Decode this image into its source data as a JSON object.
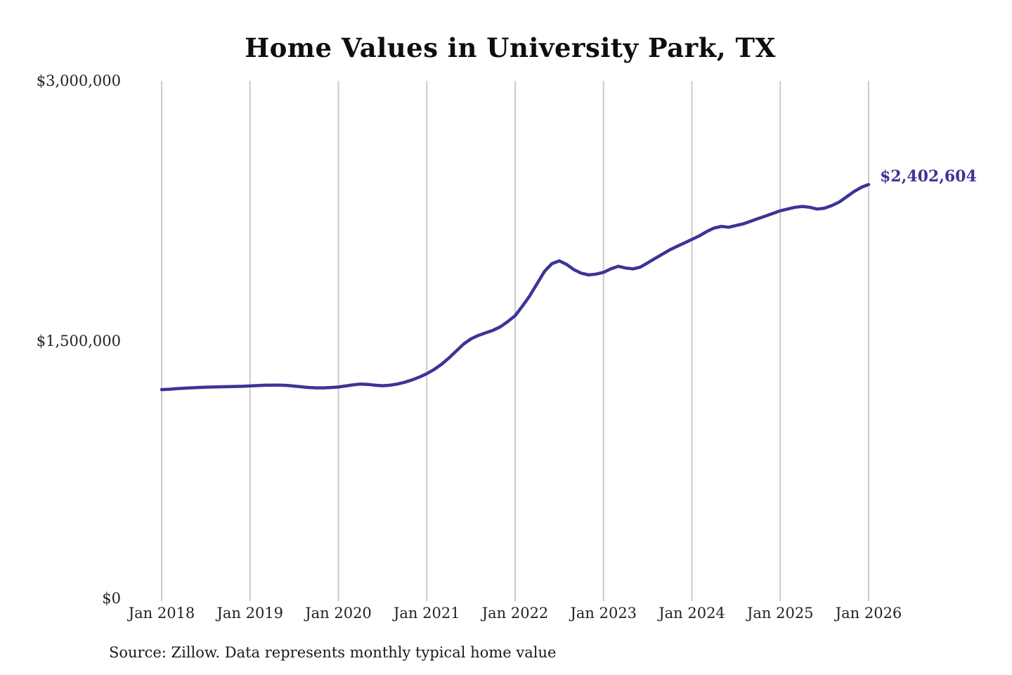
{
  "colors": {
    "accent": "#3b3596",
    "grid": "#cbcbcb",
    "text": "#222222"
  },
  "chart_data": {
    "type": "line",
    "title": "Home Values in University Park, TX",
    "source": "Source: Zillow. Data represents monthly typical home value",
    "final_value": 2402604,
    "final_value_label": "$2,402,604",
    "ylim": [
      0,
      3000000
    ],
    "y_ticks": [
      0,
      1500000,
      3000000
    ],
    "y_tick_labels": [
      "$0",
      "$1,500,000",
      "$3,000,000"
    ],
    "x_tick_labels": [
      "Jan 2018",
      "Jan 2019",
      "Jan 2020",
      "Jan 2021",
      "Jan 2022",
      "Jan 2023",
      "Jan 2024",
      "Jan 2025",
      "Jan 2026"
    ],
    "grid": "vertical-only",
    "legend": "none",
    "x": [
      "2018-01",
      "2018-02",
      "2018-03",
      "2018-04",
      "2018-05",
      "2018-06",
      "2018-07",
      "2018-08",
      "2018-09",
      "2018-10",
      "2018-11",
      "2018-12",
      "2019-01",
      "2019-02",
      "2019-03",
      "2019-04",
      "2019-05",
      "2019-06",
      "2019-07",
      "2019-08",
      "2019-09",
      "2019-10",
      "2019-11",
      "2019-12",
      "2020-01",
      "2020-02",
      "2020-03",
      "2020-04",
      "2020-05",
      "2020-06",
      "2020-07",
      "2020-08",
      "2020-09",
      "2020-10",
      "2020-11",
      "2020-12",
      "2021-01",
      "2021-02",
      "2021-03",
      "2021-04",
      "2021-05",
      "2021-06",
      "2021-07",
      "2021-08",
      "2021-09",
      "2021-10",
      "2021-11",
      "2021-12",
      "2022-01",
      "2022-02",
      "2022-03",
      "2022-04",
      "2022-05",
      "2022-06",
      "2022-07",
      "2022-08",
      "2022-09",
      "2022-10",
      "2022-11",
      "2022-12",
      "2023-01",
      "2023-02",
      "2023-03",
      "2023-04",
      "2023-05",
      "2023-06",
      "2023-07",
      "2023-08",
      "2023-09",
      "2023-10",
      "2023-11",
      "2023-12",
      "2024-01",
      "2024-02",
      "2024-03",
      "2024-04",
      "2024-05",
      "2024-06",
      "2024-07",
      "2024-08",
      "2024-09",
      "2024-10",
      "2024-11",
      "2024-12",
      "2025-01",
      "2025-02",
      "2025-03",
      "2025-04",
      "2025-05",
      "2025-06",
      "2025-07",
      "2025-08",
      "2025-09",
      "2025-10",
      "2025-11",
      "2025-12",
      "2026-01"
    ],
    "values": [
      1220000,
      1222000,
      1225000,
      1228000,
      1230000,
      1232000,
      1234000,
      1235000,
      1236000,
      1237000,
      1238000,
      1239000,
      1241000,
      1243000,
      1245000,
      1246000,
      1246000,
      1244000,
      1240000,
      1236000,
      1232000,
      1230000,
      1230000,
      1232000,
      1235000,
      1241000,
      1247000,
      1252000,
      1250000,
      1245000,
      1242000,
      1245000,
      1252000,
      1262000,
      1276000,
      1292000,
      1312000,
      1336000,
      1366000,
      1402000,
      1442000,
      1482000,
      1512000,
      1532000,
      1547000,
      1562000,
      1582000,
      1612000,
      1646000,
      1702000,
      1762000,
      1832000,
      1902000,
      1946000,
      1962000,
      1941000,
      1911000,
      1891000,
      1881000,
      1886000,
      1896000,
      1916000,
      1931000,
      1921000,
      1916000,
      1926000,
      1951000,
      1976000,
      2001000,
      2026000,
      2046000,
      2066000,
      2086000,
      2106000,
      2131000,
      2151000,
      2161000,
      2156000,
      2166000,
      2176000,
      2191000,
      2206000,
      2221000,
      2236000,
      2251000,
      2261000,
      2271000,
      2276000,
      2271000,
      2261000,
      2266000,
      2281000,
      2301000,
      2331000,
      2361000,
      2386000,
      2402604
    ]
  }
}
